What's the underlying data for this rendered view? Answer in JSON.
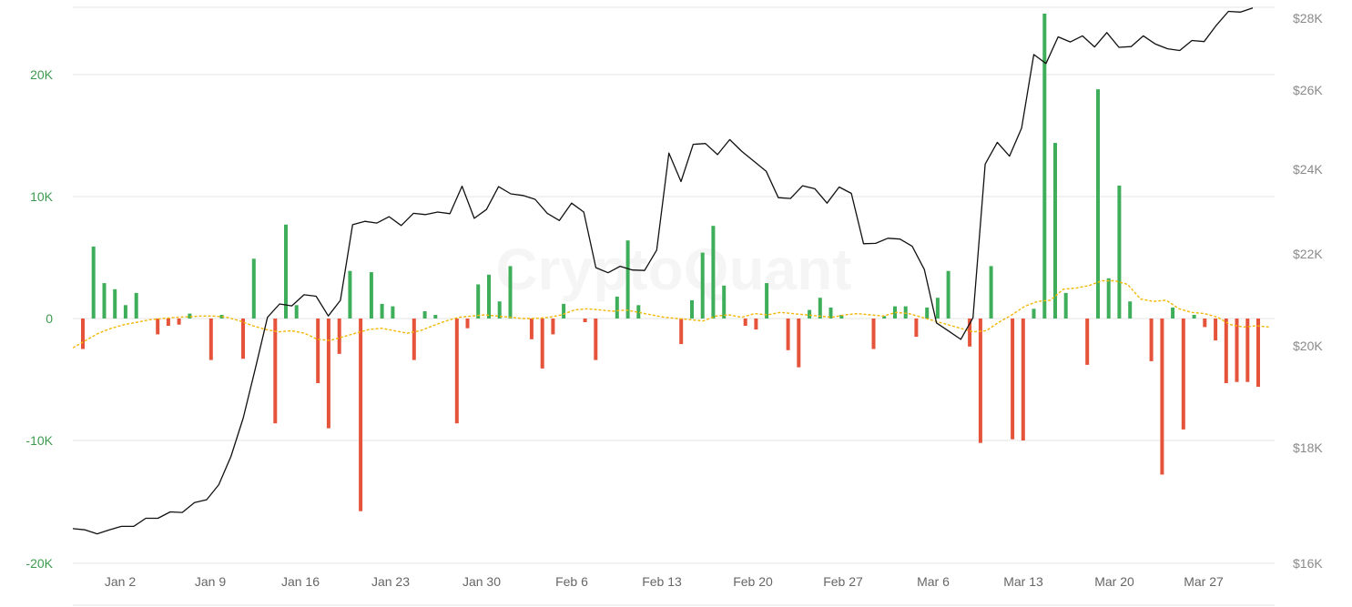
{
  "watermark": "CryptoQuant",
  "colors": {
    "positive": "#3fae5a",
    "negative": "#e5533a",
    "price_line": "#111111",
    "moving_average": "#f2b705",
    "left_axis_text": "#3d9a50",
    "right_axis_text": "#8a8a8a",
    "grid": "#e6e6e6"
  },
  "chart_data": {
    "type": "bar",
    "x_tick_labels": [
      "Jan 2",
      "Jan 9",
      "Jan 16",
      "Jan 23",
      "Jan 30",
      "Feb 6",
      "Feb 13",
      "Feb 20",
      "Feb 27",
      "Mar 6",
      "Mar 13",
      "Mar 20",
      "Mar 27"
    ],
    "y_left_tick_labels": [
      "20K",
      "10K",
      "0",
      "-10K",
      "-20K"
    ],
    "y_right_tick_labels": [
      "$28K",
      "$26K",
      "$24K",
      "$22K",
      "$20K",
      "$18K",
      "$16K"
    ],
    "y_left_range": [
      -20000,
      25000
    ],
    "y_right_range": [
      16000,
      28300
    ],
    "grid": true,
    "series": [
      {
        "type": "bar",
        "values": [
          -2500,
          5900,
          2900,
          2400,
          1100,
          2100,
          0,
          -1300,
          -600,
          -500,
          400,
          0,
          -3400,
          300,
          0,
          -3300,
          4900,
          0,
          -8600,
          7700,
          1100,
          0,
          -5300,
          -9000,
          -2900,
          3900,
          -15800,
          3800,
          1200,
          1000,
          0,
          -3400,
          600,
          300,
          0,
          -8600,
          -800,
          2800,
          3600,
          1400,
          4300,
          0,
          -1700,
          -4100,
          -1300,
          1200,
          0,
          -300,
          -3400,
          0,
          1800,
          6400,
          1100,
          0,
          0,
          0,
          -2100,
          1500,
          5400,
          7600,
          2700,
          0,
          -600,
          -900,
          2900,
          0,
          -2600,
          -4000,
          700,
          1700,
          900,
          300,
          0,
          0,
          -2500,
          200,
          1000,
          1000,
          -1500,
          900,
          1700,
          3900,
          0,
          -2300,
          -10200,
          4300,
          0,
          -9900,
          -10000,
          800,
          25000,
          14400,
          2100,
          0,
          -3800,
          18800,
          3300,
          10900,
          1400,
          0,
          -3500,
          -12800,
          900,
          -9100,
          300,
          -700,
          -1800,
          -5300,
          -5200,
          -5200,
          -5600
        ]
      },
      {
        "type": "line",
        "axis": "right",
        "values": [
          16600,
          16580,
          16510,
          16580,
          16640,
          16640,
          16780,
          16780,
          16890,
          16880,
          17050,
          17100,
          17360,
          17850,
          18580,
          19550,
          20620,
          20910,
          20870,
          21110,
          21080,
          20650,
          20990,
          22690,
          22770,
          22730,
          22880,
          22670,
          22960,
          22930,
          22990,
          22950,
          23600,
          22840,
          23050,
          23590,
          23420,
          23380,
          23290,
          22960,
          22790,
          23200,
          22990,
          21700,
          21590,
          21730,
          21650,
          21640,
          22090,
          24410,
          23710,
          24630,
          24650,
          24370,
          24750,
          24450,
          24200,
          23950,
          23330,
          23310,
          23610,
          23540,
          23200,
          23580,
          23430,
          22240,
          22250,
          22370,
          22350,
          22180,
          21660,
          20500,
          20320,
          20140,
          20610,
          24130,
          24680,
          24330,
          25040,
          26990,
          26740,
          27480,
          27340,
          27510,
          27200,
          27600,
          27190,
          27210,
          27510,
          27280,
          27150,
          27100,
          27380,
          27350,
          27800,
          28200,
          28180,
          28300
        ]
      },
      {
        "type": "line",
        "style": "dashed",
        "values": [
          -2400,
          -1800,
          -1200,
          -800,
          -500,
          -300,
          -100,
          0,
          100,
          150,
          200,
          200,
          100,
          -200,
          -600,
          -900,
          -1100,
          -1000,
          -1200,
          -1700,
          -1800,
          -1500,
          -1200,
          -900,
          -800,
          -1000,
          -1200,
          -1000,
          -600,
          -200,
          100,
          200,
          300,
          200,
          100,
          0,
          0,
          100,
          300,
          700,
          800,
          700,
          600,
          700,
          500,
          300,
          100,
          0,
          -100,
          -200,
          200,
          300,
          100,
          400,
          300,
          500,
          400,
          300,
          200,
          100,
          300,
          400,
          300,
          200,
          500,
          400,
          100,
          -200,
          -500,
          -800,
          -1100,
          -1000,
          -300,
          300,
          1000,
          1400,
          1500,
          2400,
          2500,
          2700,
          3100,
          3100,
          2800,
          1600,
          1400,
          1500,
          800,
          500,
          400,
          100,
          -500,
          -700,
          -600,
          -700
        ]
      }
    ]
  }
}
